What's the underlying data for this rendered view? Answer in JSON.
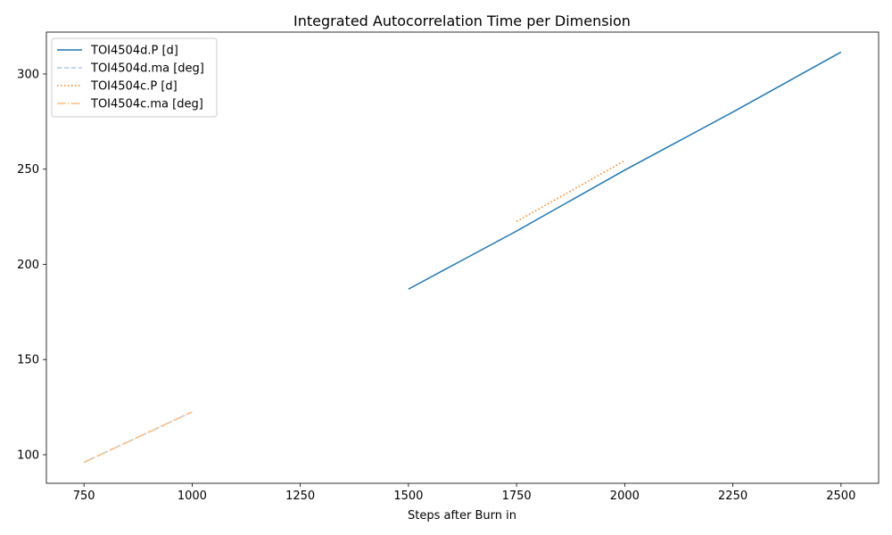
{
  "chart_data": {
    "type": "line",
    "title": "Integrated Autocorrelation Time per Dimension",
    "xlabel": "Steps after Burn in",
    "ylabel": "",
    "xlim": [
      663,
      2587
    ],
    "ylim": [
      85,
      322
    ],
    "xticks": [
      750,
      1000,
      1250,
      1500,
      1750,
      2000,
      2250,
      2500
    ],
    "yticks": [
      100,
      150,
      200,
      250,
      300
    ],
    "grid": false,
    "legend_position": "upper-left",
    "series": [
      {
        "name": "TOI4504d.P [d]",
        "color": "#1f77b4",
        "style": "solid",
        "x": [
          1500,
          1750,
          2000,
          2250,
          2500
        ],
        "y": [
          187,
          217.5,
          249.5,
          280,
          311.5
        ]
      },
      {
        "name": "TOI4504d.ma [deg]",
        "color": "#aec7e8",
        "style": "dashed",
        "x": [
          750,
          1000
        ],
        "y": [
          96,
          122.5
        ]
      },
      {
        "name": "TOI4504c.P [d]",
        "color": "#ff7f0e",
        "style": "dotted",
        "x": [
          1750,
          2000
        ],
        "y": [
          222.5,
          254.5
        ]
      },
      {
        "name": "TOI4504c.ma [deg]",
        "color": "#ffbb78",
        "style": "dashdot",
        "x": [
          750,
          1000
        ],
        "y": [
          96,
          122.5
        ]
      }
    ]
  }
}
